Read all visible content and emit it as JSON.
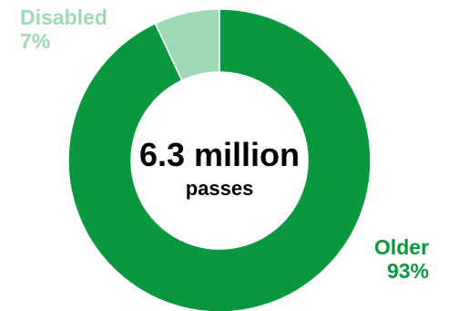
{
  "chart_data": {
    "type": "pie",
    "variant": "donut",
    "center_value": "6.3 million",
    "center_unit": "passes",
    "slices": [
      {
        "name": "Disabled",
        "percent_label": "7%",
        "value": 7,
        "color": "#9fd8b5"
      },
      {
        "name": "Older",
        "percent_label": "93%",
        "value": 93,
        "color": "#0a973d"
      }
    ]
  }
}
